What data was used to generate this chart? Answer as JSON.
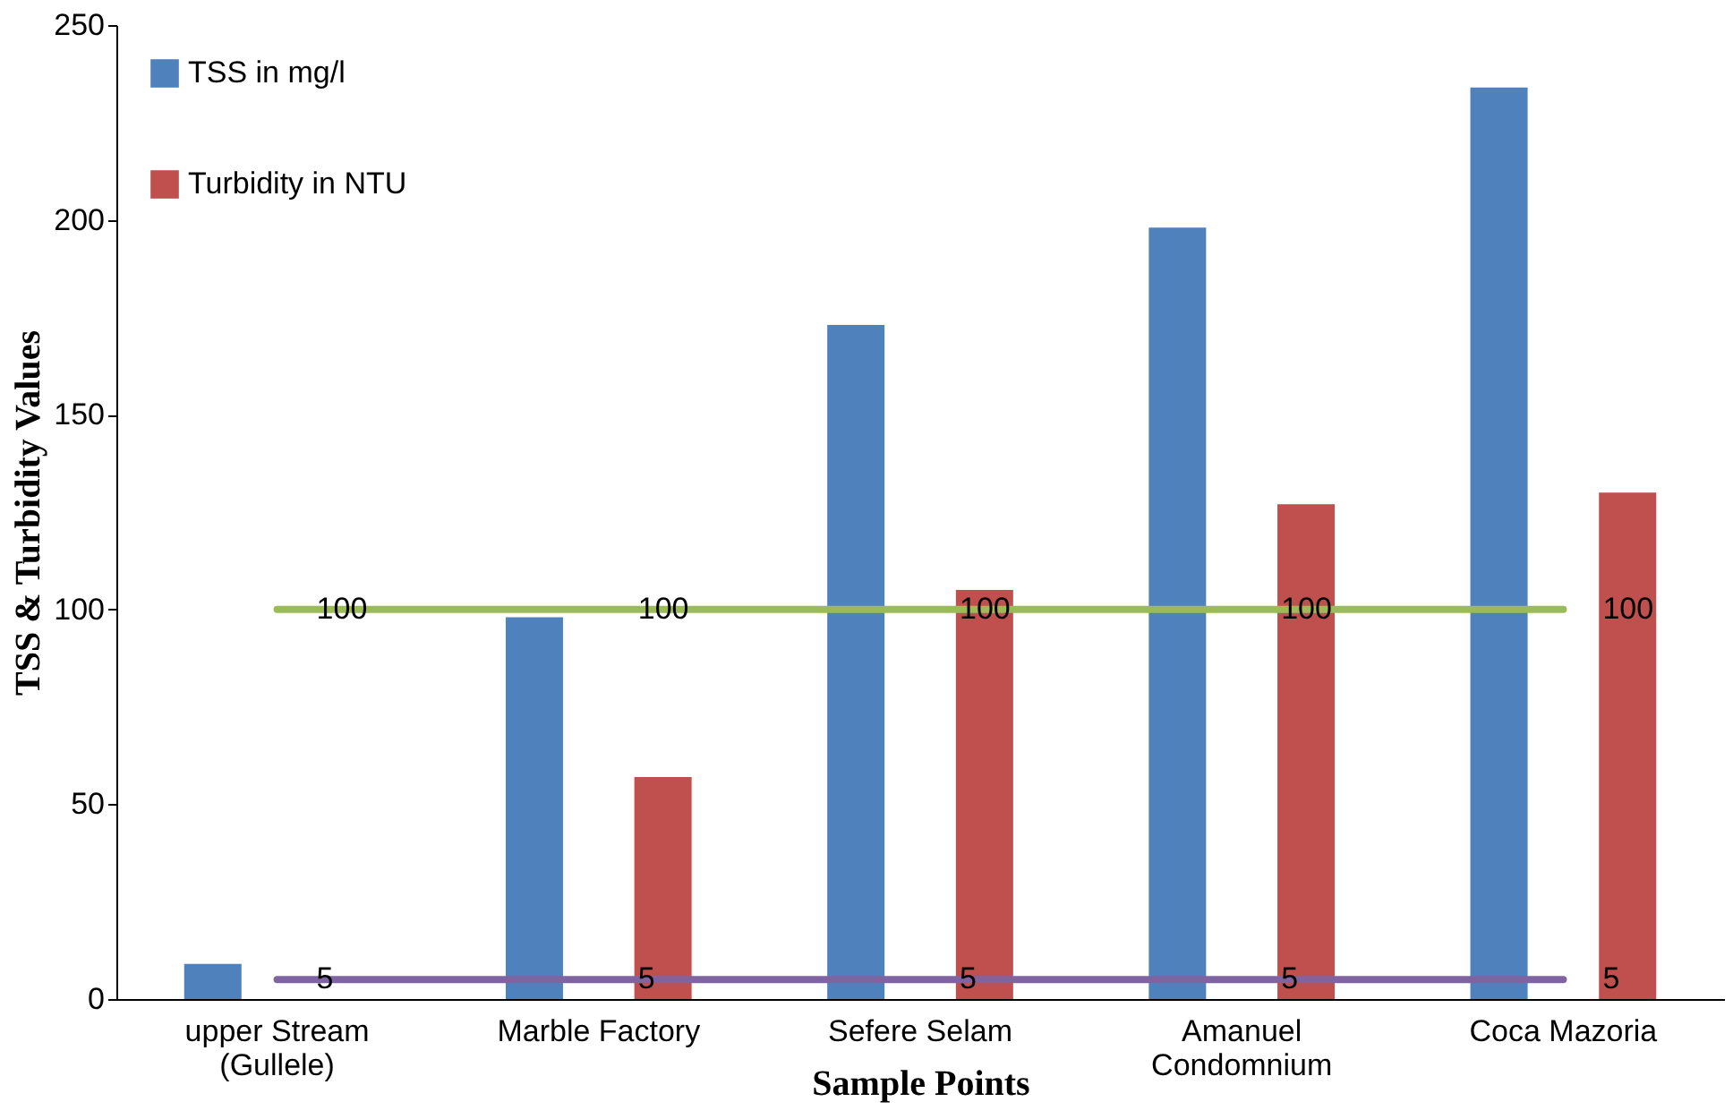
{
  "chart_data": {
    "type": "bar",
    "xlabel": "Sample Points",
    "ylabel": "TSS & Turbidity Values",
    "categories": [
      "upper Stream\n(Gullele)",
      "Marble Factory",
      "Sefere Selam",
      "Amanuel\nCondomnium",
      "Coca Mazoria"
    ],
    "series": [
      {
        "name": "TSS in mg/l",
        "color": "#4f81bd",
        "values": [
          9,
          98,
          173,
          198,
          234
        ]
      },
      {
        "name": "Turbidity in NTU",
        "color": "#c0504d",
        "values": [
          null,
          57,
          105,
          127,
          130
        ]
      },
      {
        "type": "line",
        "color": "#9bbb59",
        "values": [
          100,
          100,
          100,
          100,
          100
        ],
        "value_labels": [
          "100",
          "100",
          "100",
          "100",
          "100"
        ]
      },
      {
        "type": "line",
        "color": "#8064a2",
        "values": [
          5,
          5,
          5,
          5,
          5
        ],
        "value_labels": [
          "5",
          "5",
          "5",
          "5",
          "5"
        ]
      }
    ],
    "ylim": [
      0,
      250
    ],
    "yticks": [
      0,
      50,
      100,
      150,
      200,
      250
    ],
    "grid": false,
    "line_style": "solid",
    "legend": "top left"
  }
}
